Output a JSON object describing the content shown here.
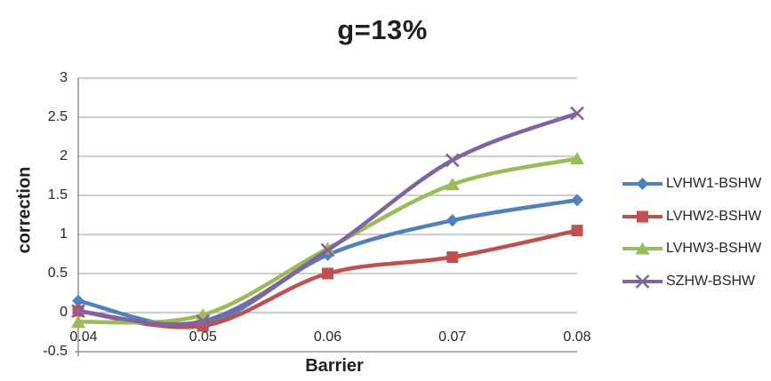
{
  "chart_data": {
    "type": "line",
    "title": "g=13%",
    "xlabel": "Barrier",
    "ylabel": "correction",
    "grid": true,
    "legend_position": "right",
    "line_smoothing": true,
    "xlim": [
      0.04,
      0.08
    ],
    "ylim": [
      -0.5,
      3
    ],
    "x": [
      0.04,
      0.05,
      0.06,
      0.07,
      0.08
    ],
    "xticks": [
      "0.04",
      "0.05",
      "0.06",
      "0.07",
      "0.08"
    ],
    "xtick_values": [
      0.04,
      0.05,
      0.06,
      0.07,
      0.08
    ],
    "yticks": [
      "3",
      "2.5",
      "2",
      "1.5",
      "1",
      "0.5",
      "0",
      "-0.5"
    ],
    "ytick_values": [
      3,
      2.5,
      2,
      1.5,
      1,
      0.5,
      0,
      -0.5
    ],
    "series": [
      {
        "name": "LVHW1-BSHW",
        "color": "#4F81BD",
        "marker": "diamond",
        "values": [
          0.15,
          -0.15,
          0.74,
          1.18,
          1.44
        ]
      },
      {
        "name": "LVHW2-BSHW",
        "color": "#C0504D",
        "marker": "square",
        "values": [
          0.02,
          -0.17,
          0.5,
          0.71,
          1.05
        ]
      },
      {
        "name": "LVHW3-BSHW",
        "color": "#9BBB59",
        "marker": "triangle",
        "values": [
          -0.12,
          -0.03,
          0.82,
          1.64,
          1.97
        ]
      },
      {
        "name": "SZHW-BSHW",
        "color": "#8064A2",
        "marker": "x",
        "values": [
          0.02,
          -0.11,
          0.8,
          1.95,
          2.55
        ]
      }
    ],
    "colors": {
      "gridline": "#9c9c9c",
      "axis": "#808080",
      "text": "#262626"
    }
  }
}
